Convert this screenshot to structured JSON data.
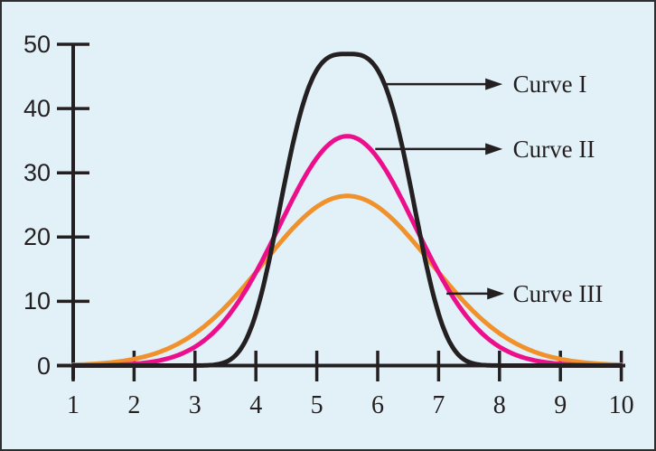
{
  "figure": {
    "background": "#E2F1F8",
    "border_color": "#2E2E2E",
    "axis_color": "#241F20",
    "text_color": "#241F20"
  },
  "chart_data": {
    "type": "line",
    "title": "",
    "xlabel": "",
    "ylabel": "",
    "xlim": [
      1,
      10
    ],
    "ylim": [
      0,
      50
    ],
    "grid": false,
    "legend_position": "arrow annotations at right of curves",
    "x_ticks": [
      "1",
      "2",
      "3",
      "4",
      "5",
      "6",
      "7",
      "8",
      "9",
      "10"
    ],
    "y_ticks": [
      "0",
      "10",
      "20",
      "30",
      "40",
      "50"
    ],
    "series": [
      {
        "name": "Curve III",
        "color": "#F0912B",
        "shape": "bell",
        "peak": 26.4,
        "peak_x": 5.5,
        "center": 5.5,
        "width": 1.94,
        "power": 2,
        "points": [
          [
            1,
            0.1
          ],
          [
            1.5,
            0.4
          ],
          [
            2,
            1.0
          ],
          [
            2.5,
            2.4
          ],
          [
            3,
            5.0
          ],
          [
            3.5,
            9.1
          ],
          [
            4,
            14.5
          ],
          [
            4.5,
            20.2
          ],
          [
            5,
            24.7
          ],
          [
            5.5,
            26.4
          ],
          [
            6,
            24.7
          ],
          [
            6.5,
            20.2
          ],
          [
            7,
            14.5
          ],
          [
            7.5,
            9.1
          ],
          [
            8,
            5.0
          ],
          [
            8.5,
            2.4
          ],
          [
            9,
            1.0
          ],
          [
            9.5,
            0.4
          ],
          [
            10,
            0.1
          ]
        ]
      },
      {
        "name": "Curve II",
        "color": "#EB0F8C",
        "shape": "bell",
        "peak": 35.7,
        "peak_x": 5.5,
        "center": 5.5,
        "width": 1.58,
        "power": 2,
        "points": [
          [
            1,
            0.0
          ],
          [
            1.5,
            0.1
          ],
          [
            2,
            0.3
          ],
          [
            2.5,
            1.0
          ],
          [
            3,
            2.9
          ],
          [
            3.5,
            7.2
          ],
          [
            4,
            14.5
          ],
          [
            4.5,
            23.9
          ],
          [
            5,
            32.3
          ],
          [
            5.5,
            35.7
          ],
          [
            6,
            32.3
          ],
          [
            6.5,
            23.9
          ],
          [
            7,
            14.5
          ],
          [
            7.5,
            7.2
          ],
          [
            8,
            2.9
          ],
          [
            8.5,
            1.0
          ],
          [
            9,
            0.3
          ],
          [
            9.5,
            0.1
          ],
          [
            10,
            0.0
          ]
        ]
      },
      {
        "name": "Curve I",
        "color": "#241F20",
        "shape": "bell",
        "peak": 48.5,
        "peak_x": 5.5,
        "center": 5.5,
        "width": 1.25,
        "power": 3.2,
        "points": [
          [
            1,
            0.0
          ],
          [
            2,
            0.0
          ],
          [
            3,
            0.0
          ],
          [
            3.5,
            0.5
          ],
          [
            4,
            8.1
          ],
          [
            4.5,
            29.7
          ],
          [
            5,
            46.0
          ],
          [
            5.5,
            48.5
          ],
          [
            6,
            46.0
          ],
          [
            6.5,
            29.7
          ],
          [
            7,
            8.1
          ],
          [
            7.5,
            0.5
          ],
          [
            8,
            0.0
          ],
          [
            9,
            0.0
          ],
          [
            10,
            0.0
          ]
        ]
      }
    ],
    "annotations": [
      {
        "label": "Curve I",
        "points_to": "Curve I",
        "y": 43.8,
        "x_start": 6.1,
        "x_tip": 8.05,
        "label_x": 8.22
      },
      {
        "label": "Curve II",
        "points_to": "Curve II",
        "y": 33.7,
        "x_start": 5.96,
        "x_tip": 8.05,
        "label_x": 8.22
      },
      {
        "label": "Curve III",
        "points_to": "Curve III",
        "y": 11.2,
        "x_start": 7.13,
        "x_tip": 8.08,
        "label_x": 8.22
      }
    ]
  }
}
